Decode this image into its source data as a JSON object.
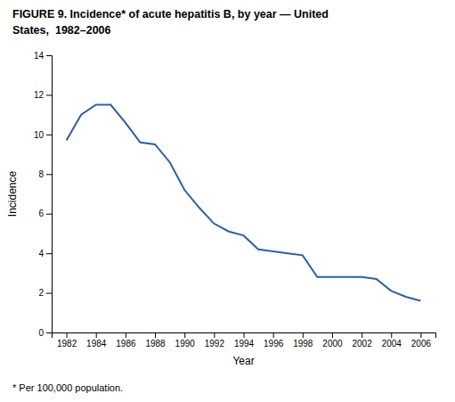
{
  "chart_data": {
    "type": "line",
    "title": "FIGURE 9. Incidence* of acute hepatitis B, by year — United",
    "subtitle": "States,  1982–2006",
    "x_label": "Year",
    "y_label": "Incidence",
    "annotations": [
      "* Per 100,000 population."
    ],
    "color": "#2E5FA3",
    "x": [
      1982,
      1983,
      1984,
      1985,
      1986,
      1987,
      1988,
      1989,
      1990,
      1991,
      1992,
      1993,
      1994,
      1995,
      1996,
      1997,
      1998,
      1999,
      2000,
      2001,
      2002,
      2003,
      2004,
      2005,
      2006
    ],
    "values": [
      9.7,
      11.0,
      11.5,
      11.5,
      10.6,
      9.6,
      9.5,
      8.6,
      7.2,
      6.3,
      5.5,
      5.1,
      4.9,
      4.2,
      4.1,
      4.0,
      3.9,
      2.8,
      2.8,
      2.8,
      2.8,
      2.7,
      2.1,
      1.8,
      1.6
    ],
    "xlim": [
      1981,
      2007
    ],
    "ylim": [
      0,
      14
    ],
    "xticks": [
      1982,
      1984,
      1986,
      1988,
      1990,
      1992,
      1994,
      1996,
      1998,
      2000,
      2002,
      2004,
      2006
    ],
    "yticks": [
      0,
      2,
      4,
      6,
      8,
      10,
      12,
      14
    ]
  }
}
